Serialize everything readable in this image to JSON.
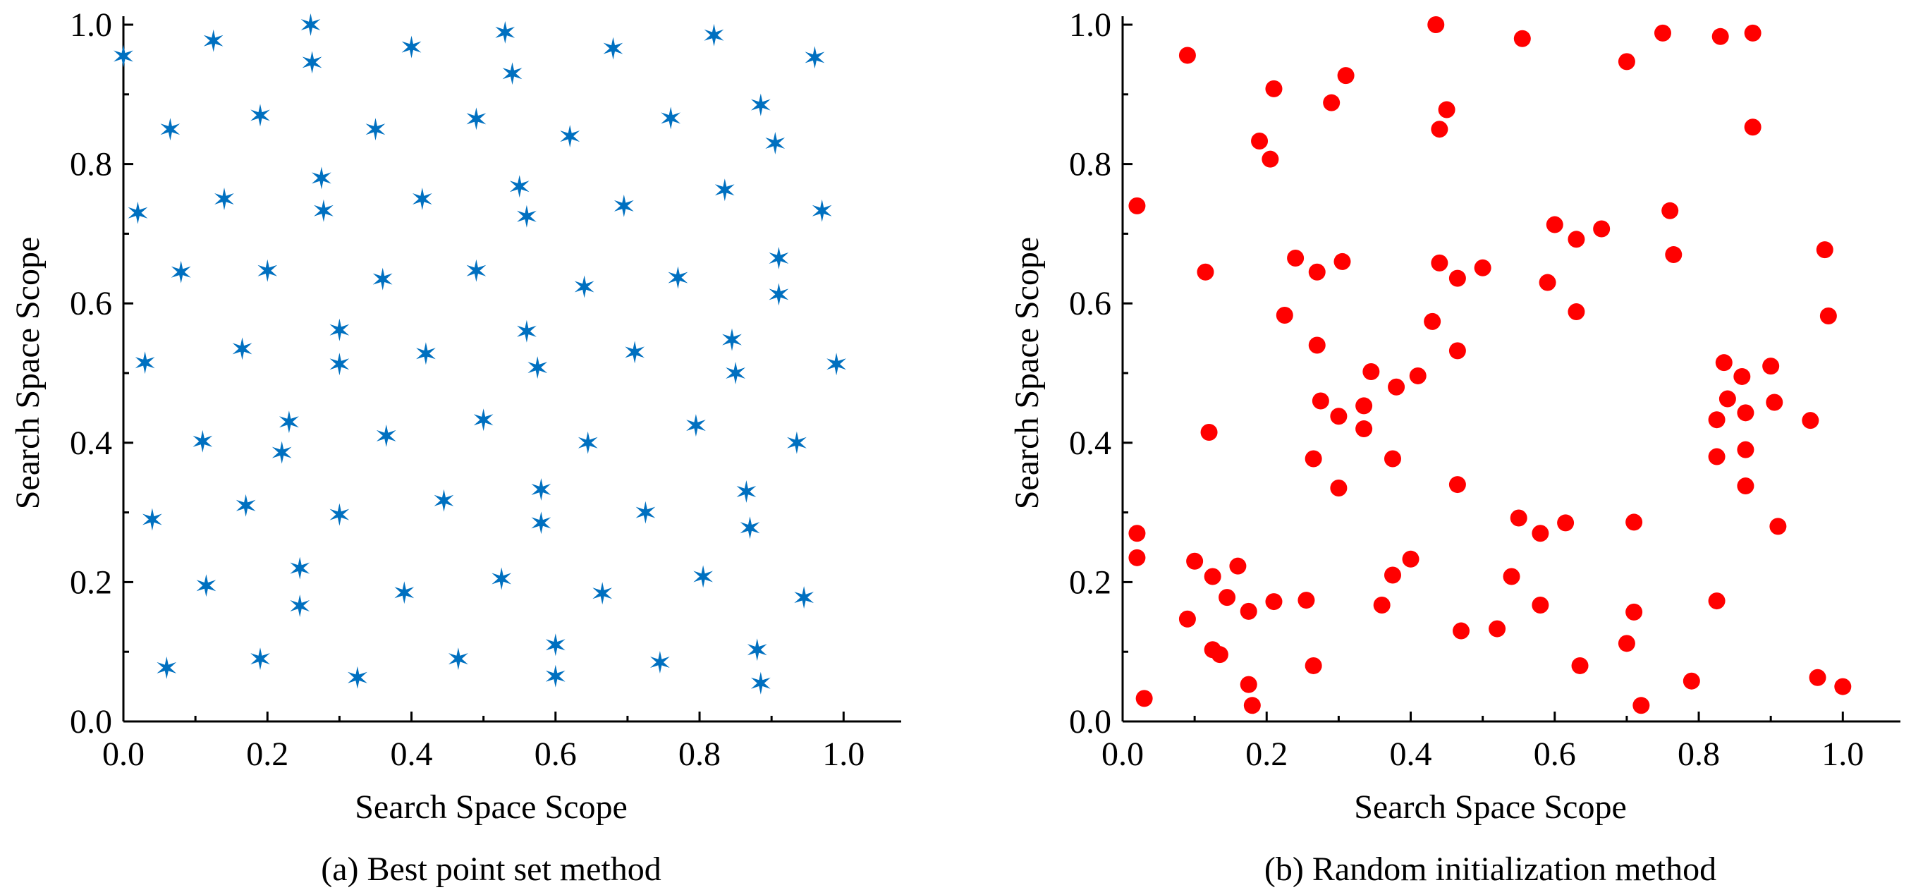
{
  "chart_data": [
    {
      "type": "scatter",
      "caption": "(a) Best point set method",
      "xlabel": "Search Space Scope",
      "ylabel": "Search Space Scope",
      "xlim": [
        0,
        1.08
      ],
      "ylim": [
        0,
        1.0
      ],
      "xticks": [
        "0.0",
        "0.2",
        "0.4",
        "0.6",
        "0.8",
        "1.0"
      ],
      "yticks": [
        "0.0",
        "0.2",
        "0.4",
        "0.6",
        "0.8",
        "1.0"
      ],
      "grid": false,
      "legend": "none",
      "marker": "star",
      "color": "#0070c0",
      "series": [
        {
          "points": [
            [
              0.0,
              0.955
            ],
            [
              0.125,
              0.977
            ],
            [
              0.26,
              1.0
            ],
            [
              0.262,
              0.946
            ],
            [
              0.4,
              0.968
            ],
            [
              0.53,
              0.989
            ],
            [
              0.54,
              0.93
            ],
            [
              0.68,
              0.966
            ],
            [
              0.82,
              0.985
            ],
            [
              0.96,
              0.953
            ],
            [
              0.065,
              0.85
            ],
            [
              0.19,
              0.87
            ],
            [
              0.35,
              0.85
            ],
            [
              0.49,
              0.865
            ],
            [
              0.62,
              0.84
            ],
            [
              0.76,
              0.866
            ],
            [
              0.885,
              0.885
            ],
            [
              0.905,
              0.83
            ],
            [
              0.02,
              0.73
            ],
            [
              0.14,
              0.75
            ],
            [
              0.275,
              0.78
            ],
            [
              0.278,
              0.733
            ],
            [
              0.415,
              0.75
            ],
            [
              0.55,
              0.768
            ],
            [
              0.56,
              0.725
            ],
            [
              0.695,
              0.74
            ],
            [
              0.835,
              0.763
            ],
            [
              0.97,
              0.733
            ],
            [
              0.08,
              0.645
            ],
            [
              0.2,
              0.647
            ],
            [
              0.36,
              0.635
            ],
            [
              0.49,
              0.647
            ],
            [
              0.64,
              0.624
            ],
            [
              0.77,
              0.637
            ],
            [
              0.91,
              0.665
            ],
            [
              0.91,
              0.613
            ],
            [
              0.03,
              0.515
            ],
            [
              0.165,
              0.535
            ],
            [
              0.3,
              0.562
            ],
            [
              0.3,
              0.513
            ],
            [
              0.42,
              0.528
            ],
            [
              0.56,
              0.56
            ],
            [
              0.575,
              0.508
            ],
            [
              0.71,
              0.53
            ],
            [
              0.845,
              0.548
            ],
            [
              0.85,
              0.5
            ],
            [
              0.99,
              0.513
            ],
            [
              0.11,
              0.402
            ],
            [
              0.23,
              0.43
            ],
            [
              0.22,
              0.386
            ],
            [
              0.365,
              0.41
            ],
            [
              0.5,
              0.433
            ],
            [
              0.645,
              0.4
            ],
            [
              0.795,
              0.425
            ],
            [
              0.935,
              0.4
            ],
            [
              0.04,
              0.29
            ],
            [
              0.17,
              0.31
            ],
            [
              0.3,
              0.297
            ],
            [
              0.445,
              0.317
            ],
            [
              0.58,
              0.333
            ],
            [
              0.58,
              0.285
            ],
            [
              0.725,
              0.3
            ],
            [
              0.865,
              0.33
            ],
            [
              0.87,
              0.278
            ],
            [
              0.115,
              0.195
            ],
            [
              0.245,
              0.22
            ],
            [
              0.245,
              0.166
            ],
            [
              0.39,
              0.185
            ],
            [
              0.525,
              0.205
            ],
            [
              0.665,
              0.184
            ],
            [
              0.805,
              0.208
            ],
            [
              0.945,
              0.178
            ],
            [
              0.06,
              0.077
            ],
            [
              0.19,
              0.09
            ],
            [
              0.325,
              0.063
            ],
            [
              0.465,
              0.09
            ],
            [
              0.6,
              0.11
            ],
            [
              0.6,
              0.065
            ],
            [
              0.745,
              0.085
            ],
            [
              0.88,
              0.103
            ],
            [
              0.885,
              0.055
            ]
          ]
        }
      ]
    },
    {
      "type": "scatter",
      "caption": "(b) Random initialization method",
      "xlabel": "Search Space Scope",
      "ylabel": "Search Space Scope",
      "xlim": [
        0,
        1.08
      ],
      "ylim": [
        0,
        1.0
      ],
      "xticks": [
        "0.0",
        "0.2",
        "0.4",
        "0.6",
        "0.8",
        "1.0"
      ],
      "yticks": [
        "0.0",
        "0.2",
        "0.4",
        "0.6",
        "0.8",
        "1.0"
      ],
      "grid": false,
      "legend": "none",
      "marker": "circle",
      "color": "#ff0000",
      "series": [
        {
          "points": [
            [
              0.435,
              1.0
            ],
            [
              0.75,
              0.988
            ],
            [
              0.83,
              0.983
            ],
            [
              0.875,
              0.988
            ],
            [
              0.555,
              0.98
            ],
            [
              0.7,
              0.947
            ],
            [
              0.09,
              0.956
            ],
            [
              0.21,
              0.908
            ],
            [
              0.31,
              0.927
            ],
            [
              0.29,
              0.888
            ],
            [
              0.45,
              0.878
            ],
            [
              0.44,
              0.85
            ],
            [
              0.875,
              0.853
            ],
            [
              0.19,
              0.833
            ],
            [
              0.205,
              0.807
            ],
            [
              0.02,
              0.74
            ],
            [
              0.6,
              0.713
            ],
            [
              0.665,
              0.707
            ],
            [
              0.63,
              0.692
            ],
            [
              0.76,
              0.733
            ],
            [
              0.765,
              0.67
            ],
            [
              0.975,
              0.677
            ],
            [
              0.24,
              0.665
            ],
            [
              0.305,
              0.66
            ],
            [
              0.27,
              0.645
            ],
            [
              0.44,
              0.658
            ],
            [
              0.5,
              0.651
            ],
            [
              0.465,
              0.636
            ],
            [
              0.59,
              0.63
            ],
            [
              0.115,
              0.645
            ],
            [
              0.225,
              0.583
            ],
            [
              0.43,
              0.574
            ],
            [
              0.63,
              0.588
            ],
            [
              0.98,
              0.582
            ],
            [
              0.27,
              0.54
            ],
            [
              0.465,
              0.532
            ],
            [
              0.345,
              0.502
            ],
            [
              0.41,
              0.496
            ],
            [
              0.38,
              0.48
            ],
            [
              0.335,
              0.453
            ],
            [
              0.275,
              0.46
            ],
            [
              0.3,
              0.438
            ],
            [
              0.335,
              0.42
            ],
            [
              0.835,
              0.515
            ],
            [
              0.86,
              0.495
            ],
            [
              0.9,
              0.51
            ],
            [
              0.84,
              0.463
            ],
            [
              0.865,
              0.443
            ],
            [
              0.825,
              0.433
            ],
            [
              0.905,
              0.458
            ],
            [
              0.955,
              0.432
            ],
            [
              0.12,
              0.415
            ],
            [
              0.265,
              0.377
            ],
            [
              0.375,
              0.377
            ],
            [
              0.825,
              0.38
            ],
            [
              0.865,
              0.39
            ],
            [
              0.3,
              0.335
            ],
            [
              0.465,
              0.34
            ],
            [
              0.865,
              0.338
            ],
            [
              0.02,
              0.27
            ],
            [
              0.02,
              0.235
            ],
            [
              0.55,
              0.292
            ],
            [
              0.58,
              0.27
            ],
            [
              0.615,
              0.285
            ],
            [
              0.71,
              0.286
            ],
            [
              0.91,
              0.28
            ],
            [
              0.1,
              0.23
            ],
            [
              0.16,
              0.223
            ],
            [
              0.125,
              0.208
            ],
            [
              0.4,
              0.233
            ],
            [
              0.375,
              0.21
            ],
            [
              0.54,
              0.208
            ],
            [
              0.145,
              0.178
            ],
            [
              0.175,
              0.158
            ],
            [
              0.21,
              0.172
            ],
            [
              0.255,
              0.174
            ],
            [
              0.36,
              0.167
            ],
            [
              0.58,
              0.167
            ],
            [
              0.71,
              0.157
            ],
            [
              0.825,
              0.173
            ],
            [
              0.09,
              0.147
            ],
            [
              0.47,
              0.13
            ],
            [
              0.52,
              0.133
            ],
            [
              0.7,
              0.112
            ],
            [
              0.125,
              0.103
            ],
            [
              0.135,
              0.096
            ],
            [
              0.265,
              0.08
            ],
            [
              0.635,
              0.08
            ],
            [
              0.79,
              0.058
            ],
            [
              0.965,
              0.063
            ],
            [
              1.0,
              0.05
            ],
            [
              0.175,
              0.053
            ],
            [
              0.03,
              0.033
            ],
            [
              0.18,
              0.023
            ],
            [
              0.72,
              0.023
            ]
          ]
        }
      ]
    }
  ]
}
